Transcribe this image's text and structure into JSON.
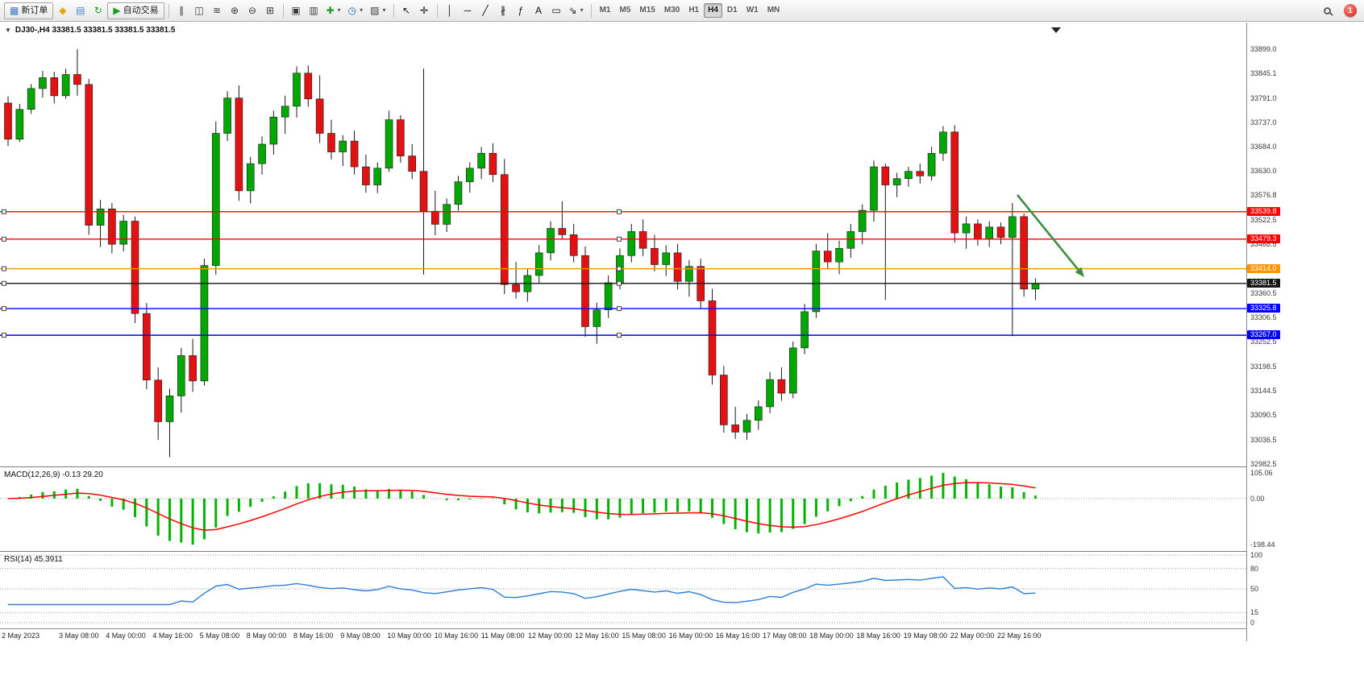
{
  "toolbar": {
    "buttons": [
      {
        "name": "new-order-button",
        "glyph": "▦",
        "color": "#3a76c4",
        "label": "新订单",
        "boxed": true
      },
      {
        "name": "sound-alert-button",
        "glyph": "◆",
        "color": "#e5a90f"
      },
      {
        "name": "history-center-button",
        "glyph": "▤",
        "color": "#4a86c8"
      },
      {
        "name": "refresh-button",
        "glyph": "↻",
        "color": "#1f9d1f"
      },
      {
        "name": "autotrading-button",
        "glyph": "▶",
        "color": "#1f9d1f",
        "label": "自动交易",
        "boxed": true
      },
      {
        "name": "sep-1",
        "sep": true
      },
      {
        "name": "bar-chart-button",
        "glyph": "∥",
        "color": "#3c3c3c"
      },
      {
        "name": "candlestick-chart-button",
        "glyph": "◫",
        "color": "#3c3c3c"
      },
      {
        "name": "line-chart-button",
        "glyph": "≋",
        "color": "#3c3c3c"
      },
      {
        "name": "zoom-in-button",
        "glyph": "⊕",
        "color": "#3c3c3c"
      },
      {
        "name": "zoom-out-button",
        "glyph": "⊖",
        "color": "#3c3c3c"
      },
      {
        "name": "tile-windows-button",
        "glyph": "⊞",
        "color": "#3c3c3c"
      },
      {
        "name": "sep-2",
        "sep": true
      },
      {
        "name": "chart-shift-button",
        "glyph": "▣",
        "color": "#3c3c3c"
      },
      {
        "name": "auto-scroll-button",
        "glyph": "▥",
        "color": "#3c3c3c"
      },
      {
        "name": "indicators-button",
        "glyph": "✚",
        "color": "#1f9d1f",
        "dropdown": true
      },
      {
        "name": "periods-button",
        "glyph": "◷",
        "color": "#2b6cb0",
        "dropdown": true
      },
      {
        "name": "templates-button",
        "glyph": "▨",
        "color": "#3c3c3c",
        "dropdown": true
      },
      {
        "name": "sep-3",
        "sep": true
      },
      {
        "name": "cursor-button",
        "glyph": "↖",
        "color": "#111111"
      },
      {
        "name": "crosshair-button",
        "glyph": "✛",
        "color": "#111111"
      },
      {
        "name": "sep-4",
        "sep": true
      },
      {
        "name": "vertical-line-button",
        "glyph": "│",
        "color": "#111111"
      },
      {
        "name": "horizontal-line-button",
        "glyph": "─",
        "color": "#111111"
      },
      {
        "name": "trendline-button",
        "glyph": "╱",
        "color": "#111111"
      },
      {
        "name": "channel-button",
        "glyph": "∦",
        "color": "#111111"
      },
      {
        "name": "fibonacci-button",
        "glyph": "ƒ",
        "color": "#111111"
      },
      {
        "name": "text-button",
        "glyph": "A",
        "color": "#111111"
      },
      {
        "name": "text-label-button",
        "glyph": "▭",
        "color": "#111111"
      },
      {
        "name": "arrows-button",
        "glyph": "⇘",
        "color": "#111111",
        "dropdown": true
      },
      {
        "name": "sep-5",
        "sep": true
      }
    ],
    "timeframes": [
      {
        "label": "M1"
      },
      {
        "label": "M5"
      },
      {
        "label": "M15"
      },
      {
        "label": "M30"
      },
      {
        "label": "H1"
      },
      {
        "label": "H4",
        "active": true
      },
      {
        "label": "D1"
      },
      {
        "label": "W1"
      },
      {
        "label": "MN"
      }
    ],
    "notification_count": "1"
  },
  "chart": {
    "collapse_glyph": "▼",
    "info_line": "DJ30-,H4 33381.5 33381.5 33381.5 33381.5"
  },
  "indicators": {
    "macd": {
      "label": "MACD(12,26,9) -0.13 29.20",
      "params": "12,26,9",
      "value_main": "-0.13",
      "value_signal": "29.20",
      "axis_labels": [
        "105.06",
        "0.00",
        "-198.44"
      ]
    },
    "rsi": {
      "label": "RSI(14) 45.3911",
      "params": "14",
      "value": "45.3911",
      "levels": [
        "100",
        "80",
        "50",
        "15",
        "0"
      ]
    }
  },
  "chart_data": {
    "type": "candlestick",
    "symbol": "DJ30-",
    "period": "H4",
    "colors": {
      "up": "#00a800",
      "down": "#e31212",
      "wick": "#1a1a1a",
      "outline": "#1a1a1a",
      "macd_bar": "#00b400",
      "macd_signal": "#ff0000",
      "rsi_line": "#2d7fd3",
      "arrow": "#3e8e41"
    },
    "y_axis": {
      "max": 33899.0,
      "min": 32982.5,
      "ticks": [
        "33899.0",
        "33845.1",
        "33791.0",
        "33737.0",
        "33684.0",
        "33630.0",
        "33576.8",
        "33522.5",
        "33468.5",
        "33360.5",
        "33306.5",
        "33252.5",
        "33198.5",
        "33144.5",
        "33090.5",
        "33036.5",
        "32982.5"
      ]
    },
    "hlines": [
      {
        "price": 33539.8,
        "color": "#ff0000",
        "label": "33539.8"
      },
      {
        "price": 33479.3,
        "color": "#ff0000",
        "label": "33479.3"
      },
      {
        "price": 33414.0,
        "color": "#ff9500",
        "label": "33414.0"
      },
      {
        "price": 33381.5,
        "color": "#151515",
        "label": "33381.5",
        "type": "bid"
      },
      {
        "price": 33325.8,
        "color": "#0000ff",
        "label": "33325.8"
      },
      {
        "price": 33267.0,
        "color": "#0000ff",
        "label": "33267.0"
      }
    ],
    "x_labels": [
      "2 May 2023",
      "3 May 08:00",
      "4 May 00:00",
      "4 May 16:00",
      "5 May 08:00",
      "8 May 00:00",
      "8 May 16:00",
      "9 May 08:00",
      "10 May 00:00",
      "10 May 16:00",
      "11 May 08:00",
      "12 May 00:00",
      "12 May 16:00",
      "15 May 08:00",
      "16 May 00:00",
      "16 May 16:00",
      "17 May 08:00",
      "18 May 00:00",
      "18 May 16:00",
      "19 May 08:00",
      "22 May 00:00",
      "22 May 16:00"
    ],
    "ohlc": [
      [
        33780,
        33795,
        33685,
        33700
      ],
      [
        33700,
        33778,
        33694,
        33766
      ],
      [
        33766,
        33822,
        33756,
        33812
      ],
      [
        33812,
        33851,
        33792,
        33836
      ],
      [
        33836,
        33849,
        33779,
        33796
      ],
      [
        33796,
        33856,
        33789,
        33843
      ],
      [
        33843,
        33899,
        33796,
        33821
      ],
      [
        33821,
        33833,
        33489,
        33510
      ],
      [
        33510,
        33566,
        33462,
        33546
      ],
      [
        33546,
        33559,
        33448,
        33468
      ],
      [
        33468,
        33533,
        33452,
        33519
      ],
      [
        33519,
        33529,
        33294,
        33315
      ],
      [
        33315,
        33338,
        33148,
        33168
      ],
      [
        33168,
        33196,
        33036,
        33076
      ],
      [
        33076,
        33149,
        32998,
        33133
      ],
      [
        33133,
        33239,
        33096,
        33222
      ],
      [
        33222,
        33259,
        33142,
        33166
      ],
      [
        33166,
        33436,
        33156,
        33421
      ],
      [
        33421,
        33739,
        33401,
        33713
      ],
      [
        33713,
        33806,
        33696,
        33791
      ],
      [
        33791,
        33819,
        33564,
        33586
      ],
      [
        33586,
        33661,
        33558,
        33646
      ],
      [
        33646,
        33706,
        33622,
        33689
      ],
      [
        33689,
        33763,
        33666,
        33749
      ],
      [
        33749,
        33796,
        33712,
        33773
      ],
      [
        33773,
        33861,
        33748,
        33846
      ],
      [
        33846,
        33863,
        33772,
        33789
      ],
      [
        33789,
        33841,
        33692,
        33713
      ],
      [
        33713,
        33743,
        33655,
        33672
      ],
      [
        33672,
        33709,
        33641,
        33696
      ],
      [
        33696,
        33719,
        33622,
        33639
      ],
      [
        33639,
        33666,
        33582,
        33599
      ],
      [
        33599,
        33649,
        33581,
        33636
      ],
      [
        33636,
        33763,
        33628,
        33743
      ],
      [
        33743,
        33753,
        33648,
        33663
      ],
      [
        33663,
        33689,
        33612,
        33629
      ],
      [
        33629,
        33856,
        33401,
        33541
      ],
      [
        33541,
        33586,
        33488,
        33512
      ],
      [
        33512,
        33569,
        33495,
        33556
      ],
      [
        33556,
        33619,
        33542,
        33606
      ],
      [
        33606,
        33649,
        33582,
        33636
      ],
      [
        33636,
        33683,
        33612,
        33669
      ],
      [
        33669,
        33691,
        33605,
        33622
      ],
      [
        33622,
        33656,
        33358,
        33379
      ],
      [
        33379,
        33429,
        33348,
        33363
      ],
      [
        33363,
        33413,
        33341,
        33399
      ],
      [
        33399,
        33466,
        33382,
        33449
      ],
      [
        33449,
        33519,
        33432,
        33503
      ],
      [
        33503,
        33563,
        33478,
        33489
      ],
      [
        33489,
        33513,
        33428,
        33443
      ],
      [
        33443,
        33463,
        33264,
        33286
      ],
      [
        33286,
        33339,
        33248,
        33323
      ],
      [
        33323,
        33399,
        33305,
        33383
      ],
      [
        33383,
        33459,
        33368,
        33443
      ],
      [
        33443,
        33513,
        33428,
        33496
      ],
      [
        33496,
        33523,
        33442,
        33459
      ],
      [
        33459,
        33489,
        33408,
        33423
      ],
      [
        33423,
        33466,
        33398,
        33449
      ],
      [
        33449,
        33469,
        33368,
        33386
      ],
      [
        33386,
        33433,
        33352,
        33419
      ],
      [
        33419,
        33436,
        33325,
        33343
      ],
      [
        33343,
        33369,
        33158,
        33179
      ],
      [
        33179,
        33199,
        33052,
        33069
      ],
      [
        33069,
        33109,
        33038,
        33053
      ],
      [
        33053,
        33093,
        33036,
        33079
      ],
      [
        33079,
        33123,
        33058,
        33109
      ],
      [
        33109,
        33186,
        33095,
        33169
      ],
      [
        33169,
        33196,
        33122,
        33139
      ],
      [
        33139,
        33253,
        33128,
        33239
      ],
      [
        33239,
        33336,
        33225,
        33319
      ],
      [
        33319,
        33469,
        33305,
        33453
      ],
      [
        33453,
        33493,
        33412,
        33429
      ],
      [
        33429,
        33476,
        33402,
        33459
      ],
      [
        33459,
        33513,
        33438,
        33496
      ],
      [
        33496,
        33556,
        33468,
        33543
      ],
      [
        33543,
        33653,
        33518,
        33639
      ],
      [
        33639,
        33646,
        33345,
        33599
      ],
      [
        33599,
        33626,
        33572,
        33613
      ],
      [
        33613,
        33639,
        33595,
        33629
      ],
      [
        33629,
        33646,
        33602,
        33619
      ],
      [
        33619,
        33683,
        33608,
        33669
      ],
      [
        33669,
        33729,
        33652,
        33716
      ],
      [
        33716,
        33731,
        33472,
        33493
      ],
      [
        33493,
        33529,
        33458,
        33513
      ],
      [
        33513,
        33523,
        33465,
        33479
      ],
      [
        33479,
        33519,
        33462,
        33506
      ],
      [
        33506,
        33516,
        33468,
        33483
      ],
      [
        33483,
        33559,
        33265,
        33529
      ],
      [
        33529,
        33536,
        33352,
        33369
      ],
      [
        33369,
        33393,
        33345,
        33381.5
      ]
    ]
  }
}
